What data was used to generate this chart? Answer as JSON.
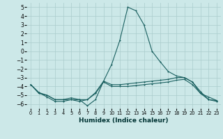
{
  "xlabel": "Humidex (Indice chaleur)",
  "xlim": [
    -0.5,
    23.5
  ],
  "ylim": [
    -6.5,
    5.5
  ],
  "yticks": [
    5,
    4,
    3,
    2,
    1,
    0,
    -1,
    -2,
    -3,
    -4,
    -5,
    -6
  ],
  "xticks": [
    0,
    1,
    2,
    3,
    4,
    5,
    6,
    7,
    8,
    9,
    10,
    11,
    12,
    13,
    14,
    15,
    16,
    17,
    18,
    19,
    20,
    21,
    22,
    23
  ],
  "bg_color": "#cce8e8",
  "grid_color": "#aacccc",
  "line_color": "#1a6060",
  "line1_x": [
    0,
    1,
    2,
    3,
    4,
    5,
    6,
    7,
    8,
    9,
    10,
    11,
    12,
    13,
    14,
    15,
    16,
    17,
    18,
    19,
    20,
    21,
    22,
    23
  ],
  "line1_y": [
    -3.8,
    -4.8,
    -5.0,
    -5.5,
    -5.5,
    -5.5,
    -5.5,
    -6.2,
    -5.5,
    -3.4,
    -1.5,
    1.2,
    5.0,
    4.6,
    3.0,
    0.0,
    -1.2,
    -2.3,
    -2.8,
    -3.0,
    -3.5,
    -4.8,
    -5.2,
    -5.6
  ],
  "line2_x": [
    0,
    1,
    2,
    3,
    4,
    5,
    6,
    7,
    8,
    9,
    10,
    11,
    12,
    13,
    14,
    15,
    16,
    17,
    18,
    19,
    20,
    21,
    22,
    23
  ],
  "line2_y": [
    -3.8,
    -4.7,
    -5.0,
    -5.5,
    -5.5,
    -5.3,
    -5.5,
    -5.5,
    -4.7,
    -3.4,
    -3.8,
    -3.8,
    -3.7,
    -3.6,
    -3.5,
    -3.4,
    -3.3,
    -3.2,
    -3.0,
    -3.0,
    -3.5,
    -4.6,
    -5.5,
    -5.6
  ],
  "line3_x": [
    0,
    1,
    2,
    3,
    4,
    5,
    6,
    7,
    8,
    9,
    10,
    11,
    12,
    13,
    14,
    15,
    16,
    17,
    18,
    19,
    20,
    21,
    22,
    23
  ],
  "line3_y": [
    -3.8,
    -4.7,
    -5.2,
    -5.7,
    -5.7,
    -5.5,
    -5.7,
    -5.5,
    -4.8,
    -3.5,
    -4.0,
    -4.0,
    -4.0,
    -3.9,
    -3.8,
    -3.7,
    -3.6,
    -3.5,
    -3.3,
    -3.2,
    -3.8,
    -4.8,
    -5.5,
    -5.7
  ],
  "lw": 0.8,
  "ms": 2.0,
  "xlabel_fontsize": 6.5,
  "xlabel_color": "#003333",
  "ytick_fontsize": 5.5,
  "xtick_fontsize": 4.8
}
